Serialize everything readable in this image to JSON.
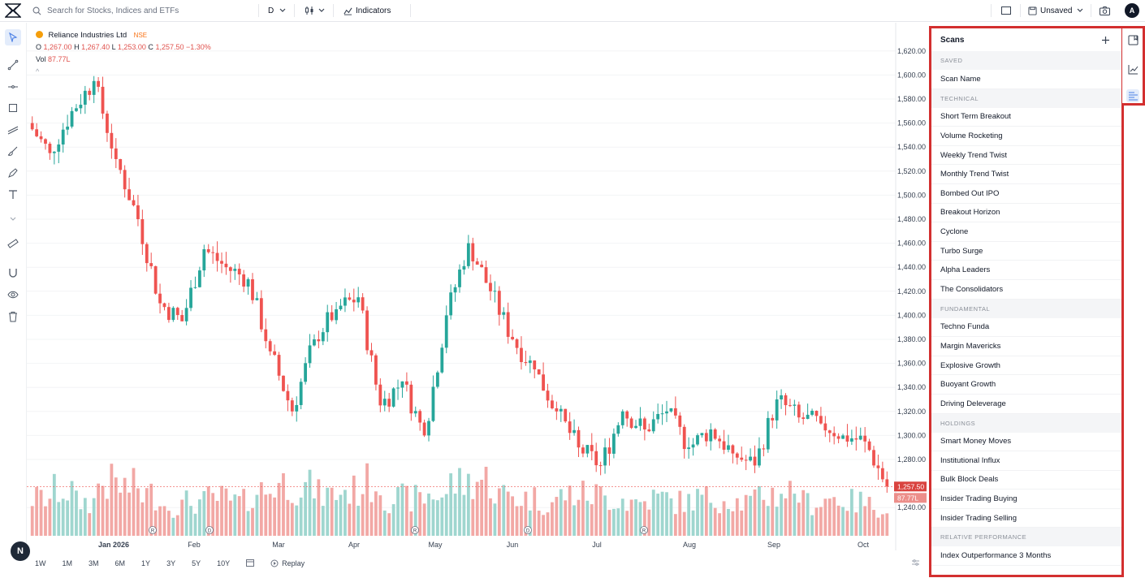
{
  "topbar": {
    "search_placeholder": "Search for Stocks, Indices and ETFs",
    "interval": "D",
    "indicators_label": "Indicators",
    "layout_label": "Unsaved",
    "avatar_letter": "A"
  },
  "legend": {
    "symbol_name": "Reliance Industries Ltd",
    "exchange": "NSE",
    "open_label": "O",
    "open": "1,267.00",
    "high_label": "H",
    "high": "1,267.40",
    "low_label": "L",
    "low": "1,253.00",
    "close_label": "C",
    "close": "1,257.50",
    "change": "−1.30%",
    "volume_label": "Vol",
    "volume": "87.77L",
    "collapse": "^"
  },
  "price_axis": {
    "ticks": [
      "1,620.00",
      "1,600.00",
      "1,580.00",
      "1,560.00",
      "1,540.00",
      "1,520.00",
      "1,500.00",
      "1,480.00",
      "1,460.00",
      "1,440.00",
      "1,420.00",
      "1,400.00",
      "1,380.00",
      "1,360.00",
      "1,340.00",
      "1,320.00",
      "1,300.00",
      "1,280.00",
      "1,240.00"
    ],
    "last_price_tag": "1,257.50",
    "last_volume_tag": "87.77L"
  },
  "time_axis": {
    "labels": [
      "Jan 2026",
      "Feb",
      "Mar",
      "Apr",
      "May",
      "Jun",
      "Jul",
      "Aug",
      "Sep",
      "Oct"
    ],
    "event_markers": [
      "R",
      "D",
      "R",
      "D",
      "R"
    ]
  },
  "bottom": {
    "ranges": [
      "1W",
      "1M",
      "3M",
      "6M",
      "1Y",
      "3Y",
      "5Y",
      "10Y"
    ],
    "replay_label": "Replay",
    "badge": "N"
  },
  "colors": {
    "up": "#26a69a",
    "down": "#ef5350",
    "up_vol": "#9fd6cf",
    "down_vol": "#f2a8a5",
    "highlight": "#d32f2f",
    "accent": "#4a7fe5"
  },
  "scans": {
    "title": "Scans",
    "sections": [
      {
        "title": "SAVED",
        "items": [
          "Scan Name"
        ]
      },
      {
        "title": "TECHNICAL",
        "items": [
          "Short Term Breakout",
          "Volume Rocketing",
          "Weekly Trend Twist",
          "Monthly Trend Twist",
          "Bombed Out IPO",
          "Breakout Horizon",
          "Cyclone",
          "Turbo Surge",
          "Alpha Leaders",
          "The Consolidators"
        ]
      },
      {
        "title": "FUNDAMENTAL",
        "items": [
          "Techno Funda",
          "Margin Mavericks",
          "Explosive Growth",
          "Buoyant Growth",
          "Driving Deleverage"
        ]
      },
      {
        "title": "HOLDINGS",
        "items": [
          "Smart Money Moves",
          "Institutional Influx",
          "Bulk Block Deals",
          "Insider Trading Buying",
          "Insider Trading Selling"
        ]
      },
      {
        "title": "RELATIVE PERFORMANCE",
        "items": [
          "Index Outperformance 3 Months"
        ]
      }
    ]
  },
  "right_toolbar": {
    "icons": [
      "watchlist-icon",
      "chart-line-icon",
      "scan-list-icon"
    ]
  },
  "chart_data": {
    "type": "candlestick",
    "xlabel": "",
    "ylabel": "",
    "ylim": [
      1230,
      1630
    ],
    "x": [
      "2025-12-15",
      "2025-12-22",
      "2025-12-29",
      "2026-01-05",
      "2026-01-12",
      "2026-01-19",
      "2026-01-26",
      "2026-02-02",
      "2026-02-09",
      "2026-02-16",
      "2026-02-23",
      "2026-03-02",
      "2026-03-09",
      "2026-03-16",
      "2026-03-23",
      "2026-03-30",
      "2026-04-06",
      "2026-04-13",
      "2026-04-20",
      "2026-04-27",
      "2026-05-04",
      "2026-05-11",
      "2026-05-18",
      "2026-05-25",
      "2026-06-01",
      "2026-06-08",
      "2026-06-15",
      "2026-06-22",
      "2026-06-29",
      "2026-07-06",
      "2026-07-13",
      "2026-07-20",
      "2026-07-27",
      "2026-08-03",
      "2026-08-10",
      "2026-08-17",
      "2026-08-24",
      "2026-08-31",
      "2026-09-07"
    ],
    "series": [
      {
        "open": [
          1560,
          1535,
          1570,
          1595,
          1530,
          1480,
          1410,
          1395,
          1455,
          1440,
          1430,
          1370,
          1320,
          1380,
          1405,
          1415,
          1325,
          1345,
          1300,
          1400,
          1460,
          1420,
          1380,
          1355,
          1320,
          1290,
          1275,
          1320,
          1305,
          1320,
          1290,
          1305,
          1285,
          1275,
          1330,
          1315,
          1310,
          1300,
          1295
        ],
        "close": [
          1535,
          1570,
          1595,
          1530,
          1480,
          1410,
          1395,
          1455,
          1440,
          1430,
          1370,
          1320,
          1380,
          1405,
          1415,
          1325,
          1345,
          1300,
          1400,
          1460,
          1420,
          1380,
          1355,
          1320,
          1290,
          1275,
          1320,
          1305,
          1320,
          1290,
          1305,
          1285,
          1275,
          1330,
          1315,
          1310,
          1300,
          1295,
          1257.5
        ],
        "volume": [
          50,
          60,
          45,
          70,
          65,
          55,
          40,
          45,
          50,
          45,
          60,
          70,
          65,
          55,
          60,
          70,
          50,
          50,
          55,
          70,
          75,
          55,
          50,
          45,
          55,
          55,
          50,
          45,
          50,
          45,
          50,
          50,
          45,
          55,
          60,
          45,
          50,
          45,
          40
        ]
      }
    ]
  }
}
